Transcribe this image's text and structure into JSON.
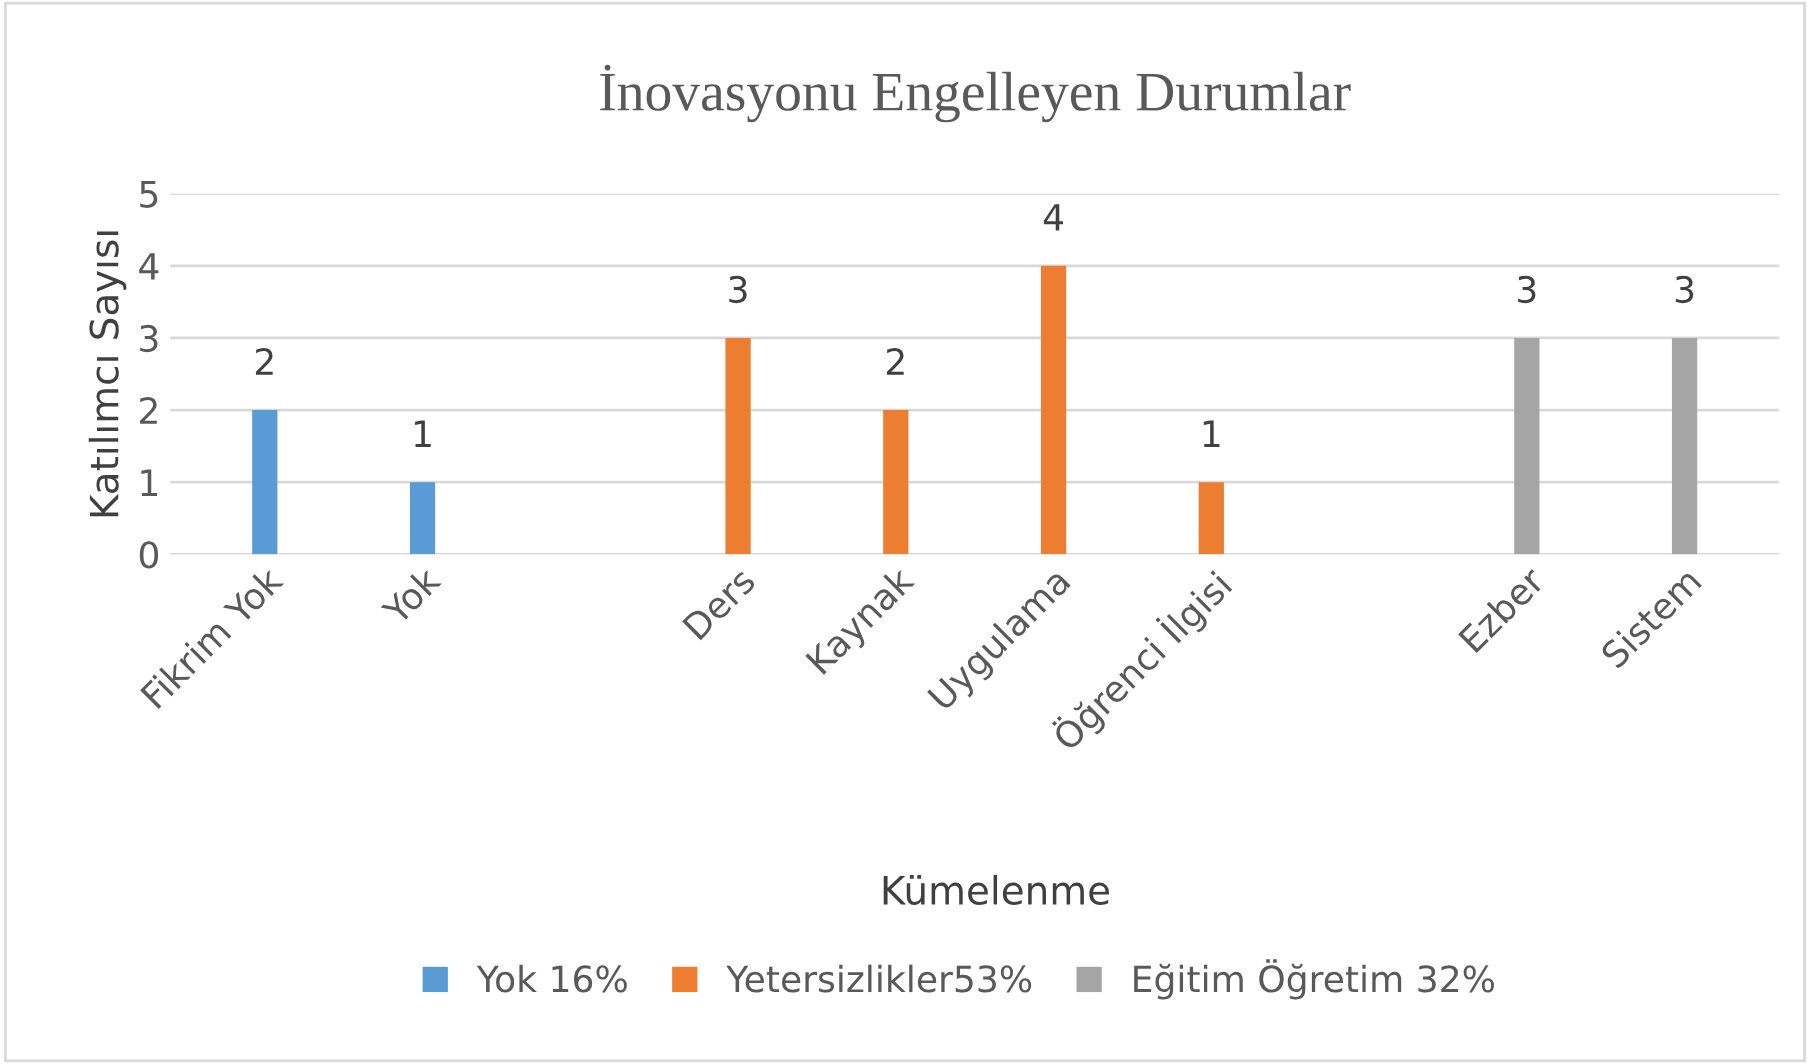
{
  "chart_data": {
    "type": "bar",
    "title": "İnovasyonu Engelleyen Durumlar",
    "xlabel": "Kümelenme",
    "ylabel": "Katılımcı Sayısı",
    "categories": [
      "Fikrim Yok",
      "Yok",
      null,
      "Ders",
      "Kaynak",
      "Uygulama",
      "Öğrenci İlgisi",
      null,
      "Ezber",
      "Sistem"
    ],
    "series": [
      {
        "name": "Yok 16%",
        "color": "#5b9bd5",
        "values": [
          2,
          1,
          null,
          null,
          null,
          null,
          null,
          null,
          null,
          null
        ]
      },
      {
        "name": "Yetersizlikler53%",
        "color": "#ed7d31",
        "values": [
          null,
          null,
          null,
          3,
          2,
          4,
          1,
          null,
          null,
          null
        ]
      },
      {
        "name": "Eğitim Öğretim 32%",
        "color": "#a5a5a5",
        "values": [
          null,
          null,
          null,
          null,
          null,
          null,
          null,
          null,
          3,
          3
        ]
      }
    ],
    "ylim": [
      0,
      5
    ],
    "yticks": [
      0,
      1,
      2,
      3,
      4,
      5
    ],
    "grid": "y",
    "legend": "bottom",
    "data_labels": true
  }
}
